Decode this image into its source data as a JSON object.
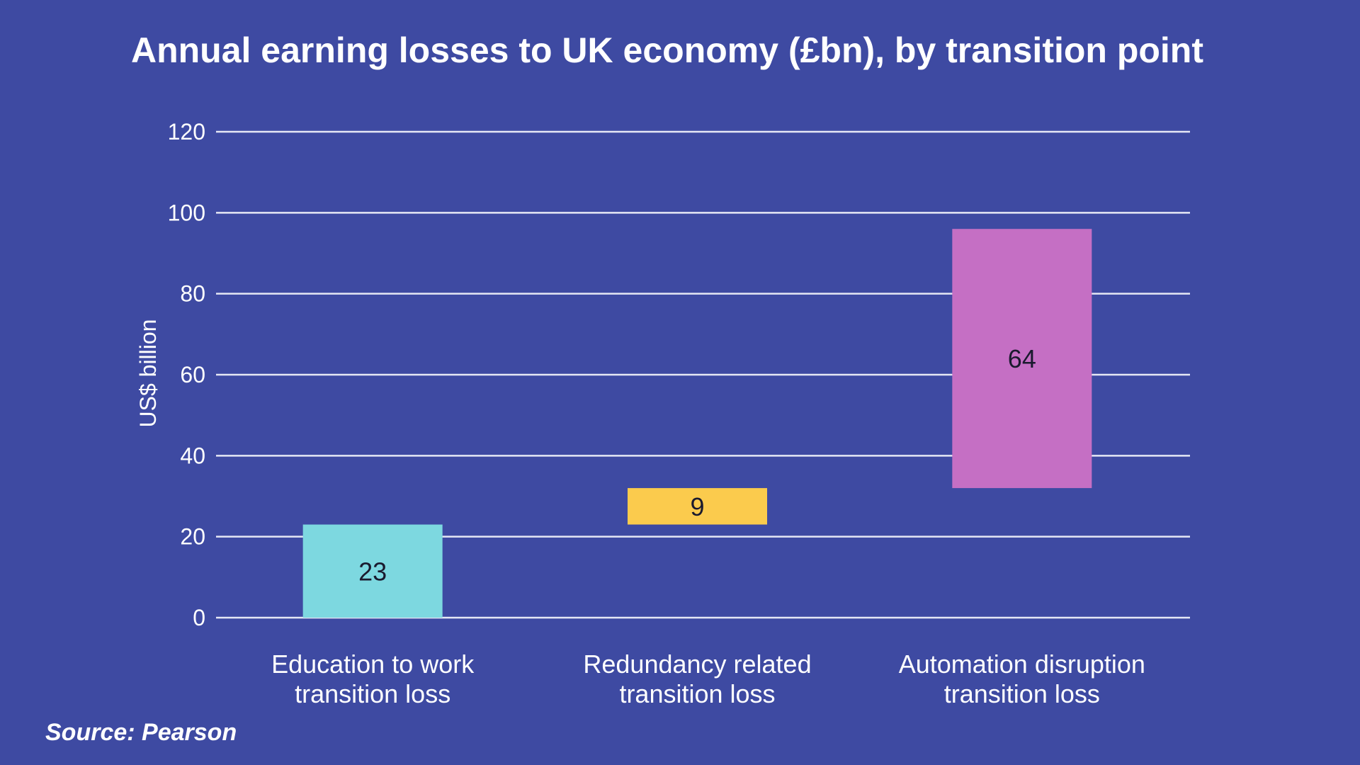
{
  "source": "Source: Pearson",
  "chart_data": {
    "type": "bar",
    "subtype": "floating-waterfall",
    "title": "Annual earning losses to UK economy (£bn), by transition  point",
    "ylabel": "US$ billion",
    "xlabel": "",
    "ylim": [
      0,
      120
    ],
    "yticks": [
      0,
      20,
      40,
      60,
      80,
      100,
      120
    ],
    "grid": true,
    "categories": [
      [
        "Education to work",
        "transition loss"
      ],
      [
        "Redundancy related",
        "transition loss"
      ],
      [
        "Automation disruption",
        "transition loss"
      ]
    ],
    "bars": [
      {
        "base": 0,
        "value": 23,
        "label": "23",
        "color": "#7dd8e0"
      },
      {
        "base": 23,
        "value": 9,
        "label": "9",
        "color": "#fbcb4d"
      },
      {
        "base": 32,
        "value": 64,
        "label": "64",
        "color": "#c56fc4"
      }
    ],
    "colors": {
      "background": "#3e4aa2",
      "grid": "#e6e8f5"
    }
  }
}
